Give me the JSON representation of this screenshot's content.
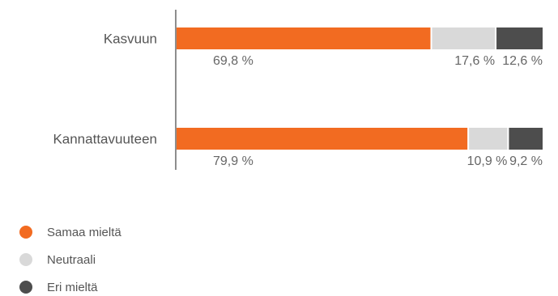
{
  "chart_data": {
    "type": "bar",
    "orientation": "horizontal",
    "stacked": true,
    "normalized": true,
    "categories": [
      "Kasvuun",
      "Kannattavuuteen"
    ],
    "series": [
      {
        "name": "Samaa mieltä",
        "values": [
          69.8,
          79.9
        ],
        "labels": [
          "69,8 %",
          "79,9 %"
        ],
        "color": "#f26b21"
      },
      {
        "name": "Neutraali",
        "values": [
          17.6,
          10.9
        ],
        "labels": [
          "17,6 %",
          "10,9 %"
        ],
        "color": "#d9d9d9"
      },
      {
        "name": "Eri mieltä",
        "values": [
          12.6,
          9.2
        ],
        "labels": [
          "12,6 %",
          "9,2 %"
        ],
        "color": "#4d4d4d"
      }
    ],
    "xlim": [
      0,
      100
    ],
    "grid": false,
    "legend_position": "bottom-left"
  }
}
